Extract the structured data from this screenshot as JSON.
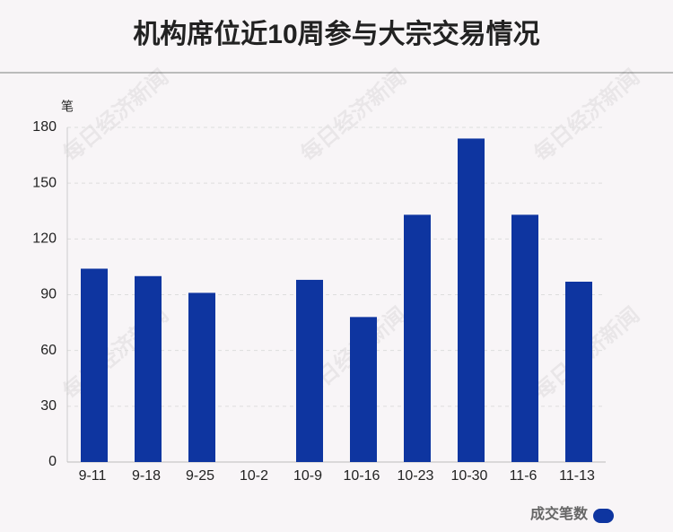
{
  "chart_data": {
    "type": "bar",
    "title": "机构席位近10周参与大宗交易情况",
    "y_label": "笔",
    "categories": [
      "9-11",
      "9-18",
      "9-25",
      "10-2",
      "10-9",
      "10-16",
      "10-23",
      "10-30",
      "11-6",
      "11-13"
    ],
    "series": [
      {
        "name": "成交笔数",
        "color": "#0e35a0",
        "values": [
          104,
          100,
          91,
          0,
          98,
          78,
          133,
          174,
          133,
          97
        ]
      }
    ],
    "ylim": [
      0,
      180
    ],
    "yticks": [
      0,
      30,
      60,
      90,
      120,
      150,
      180
    ],
    "grid": true,
    "legend": "bottom-right",
    "watermark": "每日经济新闻"
  }
}
